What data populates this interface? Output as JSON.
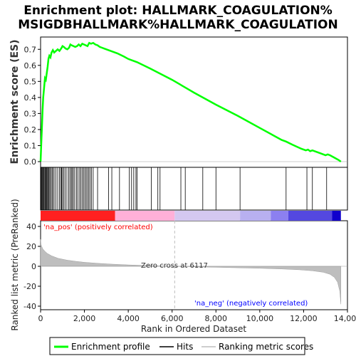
{
  "chart_data": {
    "type": "line",
    "title_lines": [
      "Enrichment plot: HALLMARK_COAGULATION%",
      "MSIGDBHALLMARK%HALLMARK_COAGULATION"
    ],
    "xlabel": "Rank in Ordered Dataset",
    "ylabel_top": "Enrichment score (ES)",
    "ylabel_bottom": "Ranked list metric (PreRanked)",
    "xlim": [
      0,
      14000
    ],
    "x_ticks": [
      0,
      2000,
      4000,
      6000,
      8000,
      10000,
      12000,
      14000
    ],
    "x_tick_labels": [
      "0",
      "2,000",
      "4,000",
      "6,000",
      "8,000",
      "10,000",
      "12,000",
      "14,000"
    ],
    "es_ylim": [
      0,
      0.75
    ],
    "es_ticks": [
      0.0,
      0.1,
      0.2,
      0.3,
      0.4,
      0.5,
      0.6,
      0.7
    ],
    "es_tick_labels": [
      "0.0",
      "0.1",
      "0.2",
      "0.3",
      "0.4",
      "0.5",
      "0.6",
      "0.7"
    ],
    "metric_ylim": [
      -40,
      40
    ],
    "metric_ticks": [
      -40,
      -20,
      0,
      20,
      40
    ],
    "metric_tick_labels": [
      "-40",
      "-20",
      "0",
      "20",
      "40"
    ],
    "series": [
      {
        "name": "Enrichment profile",
        "color": "#00ff00",
        "x": [
          0,
          30,
          60,
          90,
          120,
          160,
          200,
          240,
          280,
          320,
          360,
          400,
          450,
          500,
          560,
          620,
          700,
          780,
          860,
          940,
          1000,
          1060,
          1140,
          1220,
          1300,
          1360,
          1420,
          1500,
          1580,
          1660,
          1740,
          1820,
          1900,
          1980,
          2060,
          2140,
          2220,
          2300,
          2400,
          2500,
          2600,
          2700,
          2800,
          2900,
          3000,
          3100,
          3200,
          3300,
          3500,
          3800,
          4000,
          4200,
          4400,
          5000,
          6000,
          7000,
          8000,
          9000,
          10000,
          11000,
          11200,
          11500,
          11900,
          12100,
          12200,
          12300,
          12400,
          12600,
          12800,
          13000,
          13100,
          13200,
          13400,
          13600,
          13700
        ],
        "y": [
          0.0,
          0.11,
          0.21,
          0.32,
          0.4,
          0.46,
          0.52,
          0.51,
          0.55,
          0.59,
          0.64,
          0.66,
          0.65,
          0.68,
          0.695,
          0.68,
          0.69,
          0.7,
          0.69,
          0.705,
          0.72,
          0.715,
          0.705,
          0.7,
          0.71,
          0.73,
          0.725,
          0.72,
          0.715,
          0.72,
          0.73,
          0.72,
          0.735,
          0.73,
          0.725,
          0.72,
          0.74,
          0.735,
          0.74,
          0.73,
          0.725,
          0.715,
          0.71,
          0.705,
          0.7,
          0.695,
          0.69,
          0.685,
          0.675,
          0.655,
          0.64,
          0.63,
          0.62,
          0.58,
          0.51,
          0.43,
          0.355,
          0.285,
          0.21,
          0.135,
          0.125,
          0.105,
          0.08,
          0.07,
          0.075,
          0.065,
          0.07,
          0.06,
          0.05,
          0.04,
          0.045,
          0.04,
          0.025,
          0.01,
          0.0
        ]
      },
      {
        "name": "Hits",
        "color": "#000000",
        "hits": [
          20,
          50,
          80,
          110,
          140,
          170,
          210,
          240,
          270,
          300,
          340,
          380,
          420,
          460,
          520,
          560,
          620,
          700,
          780,
          860,
          920,
          960,
          1000,
          1060,
          1120,
          1200,
          1280,
          1340,
          1400,
          1440,
          1500,
          1560,
          1640,
          1700,
          1780,
          1840,
          1900,
          1960,
          2020,
          2080,
          2140,
          2200,
          2260,
          2320,
          2400,
          2600,
          3100,
          3250,
          3600,
          4050,
          4150,
          4250,
          4350,
          4400,
          5050,
          5350,
          5450,
          6400,
          6600,
          7400,
          8000,
          9100,
          11200,
          12150,
          12400,
          13050
        ]
      },
      {
        "name": "Ranking metric scores",
        "color": "#bebebe",
        "x": [
          0,
          20,
          50,
          100,
          200,
          300,
          500,
          800,
          1200,
          1600,
          2000,
          2600,
          3200,
          4000,
          5000,
          6117,
          7000,
          8000,
          9000,
          10000,
          11000,
          11800,
          12400,
          12900,
          13200,
          13400,
          13550,
          13650,
          13700
        ],
        "y": [
          27,
          22,
          20,
          17.5,
          15,
          13,
          10.5,
          8,
          6.2,
          5,
          4,
          3,
          2.2,
          1.4,
          0.6,
          0,
          -0.5,
          -1,
          -1.5,
          -2,
          -2.7,
          -3.5,
          -4.5,
          -6,
          -8,
          -11,
          -16,
          -25,
          -38
        ]
      }
    ],
    "heatmap_segments": [
      {
        "x0": 0,
        "x1": 3400,
        "color": "#ff2020"
      },
      {
        "x0": 3400,
        "x1": 6117,
        "color": "#ffb0d8"
      },
      {
        "x0": 6117,
        "x1": 9100,
        "color": "#d4c8f0"
      },
      {
        "x0": 9100,
        "x1": 10500,
        "color": "#b8b0f0"
      },
      {
        "x0": 10500,
        "x1": 11300,
        "color": "#8c80f0"
      },
      {
        "x0": 11300,
        "x1": 13300,
        "color": "#5448e0"
      },
      {
        "x0": 13300,
        "x1": 13700,
        "color": "#1000cc"
      }
    ],
    "annotations": {
      "pos_label": "'na_pos' (positively correlated)",
      "neg_label": "'na_neg' (negatively correlated)",
      "zero_cross": "Zero cross at 6117",
      "zero_cross_x": 6117
    },
    "legend": {
      "placement": "bottom",
      "items": [
        "Enrichment profile",
        "Hits",
        "Ranking metric scores"
      ]
    },
    "colors": {
      "pos_label": "#ff0000",
      "neg_label": "#0000ff",
      "zero_line": "#bfbfbf",
      "axes": "#000000"
    }
  }
}
